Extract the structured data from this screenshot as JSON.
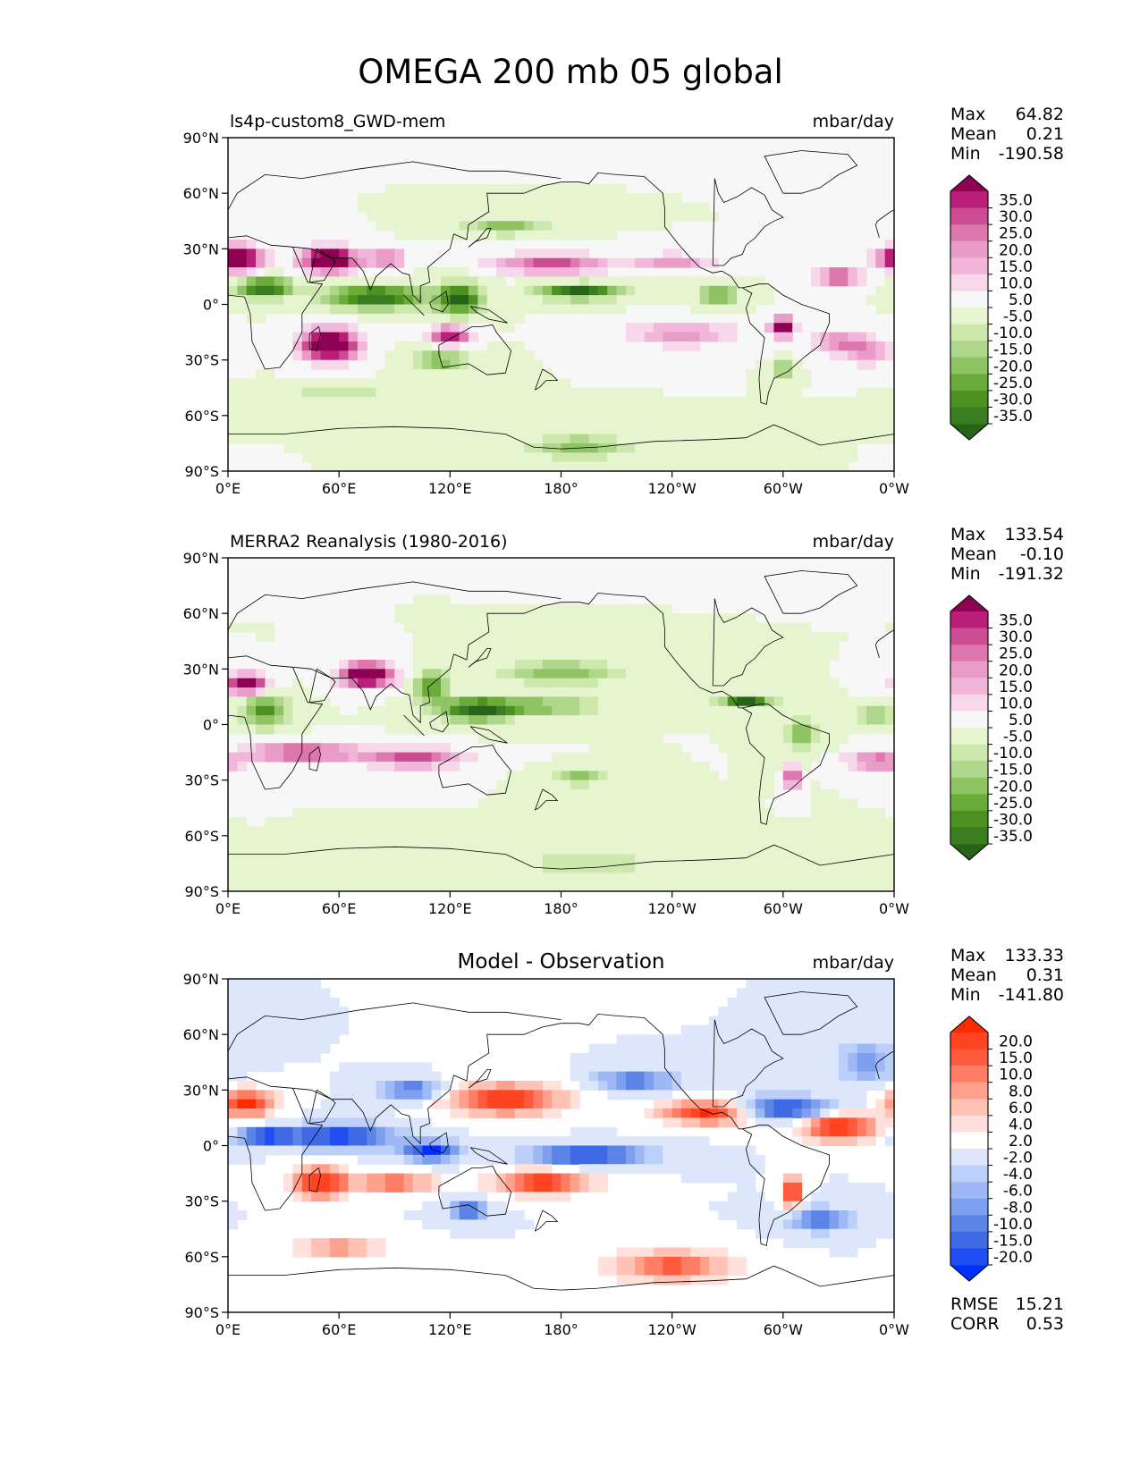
{
  "figure_title": "OMEGA 200 mb 05 global",
  "colors": {
    "pink_green": [
      "#276419",
      "#3a7d21",
      "#4d9221",
      "#6aab39",
      "#8fc363",
      "#afd78b",
      "#cce8ad",
      "#e6f5d0",
      "#f7f7f7",
      "#f6d8ea",
      "#f1b6da",
      "#ea9cc9",
      "#de77ae",
      "#cc4c94",
      "#b91f7a",
      "#8e0152"
    ],
    "red_blue": [
      "#0030ff",
      "#1f4ef2",
      "#3f6ae6",
      "#5c84e6",
      "#7c9ff0",
      "#9db8f4",
      "#bccff8",
      "#dde6fb",
      "#ffffff",
      "#ffe0da",
      "#ffc2b4",
      "#ffa08d",
      "#ff7d65",
      "#ff5a3e",
      "#ff4422",
      "#ff2a00"
    ]
  },
  "chart_data": [
    {
      "type": "heatmap",
      "title_left": "ls4p-custom8_GWD-mem",
      "title_right": "mbar/day",
      "xticks": [
        "0°E",
        "60°E",
        "120°E",
        "180°",
        "120°W",
        "60°W",
        "0°W"
      ],
      "yticks": [
        "90°N",
        "60°N",
        "30°N",
        "0°",
        "30°S",
        "60°S",
        "90°S"
      ],
      "xlim": [
        0,
        360
      ],
      "ylim": [
        -90,
        90
      ],
      "stats": [
        {
          "label": "Max",
          "value": "64.82"
        },
        {
          "label": "Mean",
          "value": "0.21"
        },
        {
          "label": "Min",
          "value": "-190.58"
        }
      ],
      "colorbar_levels": [
        "35.0",
        "30.0",
        "25.0",
        "20.0",
        "15.0",
        "10.0",
        "5.0",
        "-5.0",
        "-10.0",
        "-15.0",
        "-20.0",
        "-25.0",
        "-30.0",
        "-35.0"
      ],
      "colormap": "pink_green"
    },
    {
      "type": "heatmap",
      "title_left": "MERRA2 Reanalysis (1980-2016)",
      "title_right": "mbar/day",
      "xticks": [
        "0°E",
        "60°E",
        "120°E",
        "180°",
        "120°W",
        "60°W",
        "0°W"
      ],
      "yticks": [
        "90°N",
        "60°N",
        "30°N",
        "0°",
        "30°S",
        "60°S",
        "90°S"
      ],
      "xlim": [
        0,
        360
      ],
      "ylim": [
        -90,
        90
      ],
      "stats": [
        {
          "label": "Max",
          "value": "133.54"
        },
        {
          "label": "Mean",
          "value": "-0.10"
        },
        {
          "label": "Min",
          "value": "-191.32"
        }
      ],
      "colorbar_levels": [
        "35.0",
        "30.0",
        "25.0",
        "20.0",
        "15.0",
        "10.0",
        "5.0",
        "-5.0",
        "-10.0",
        "-15.0",
        "-20.0",
        "-25.0",
        "-30.0",
        "-35.0"
      ],
      "colormap": "pink_green"
    },
    {
      "type": "heatmap",
      "title_center": "Model - Observation",
      "title_right": "mbar/day",
      "xticks": [
        "0°E",
        "60°E",
        "120°E",
        "180°",
        "120°W",
        "60°W",
        "0°W"
      ],
      "yticks": [
        "90°N",
        "60°N",
        "30°N",
        "0°",
        "30°S",
        "60°S",
        "90°S"
      ],
      "xlim": [
        0,
        360
      ],
      "ylim": [
        -90,
        90
      ],
      "stats": [
        {
          "label": "Max",
          "value": "133.33"
        },
        {
          "label": "Mean",
          "value": "0.31"
        },
        {
          "label": "Min",
          "value": "-141.80"
        }
      ],
      "colorbar_levels": [
        "20.0",
        "15.0",
        "10.0",
        "8.0",
        "6.0",
        "4.0",
        "2.0",
        "-2.0",
        "-4.0",
        "-6.0",
        "-8.0",
        "-10.0",
        "-15.0",
        "-20.0"
      ],
      "colormap": "red_blue",
      "metrics": [
        {
          "label": "RMSE",
          "value": "15.21"
        },
        {
          "label": "CORR",
          "value": "0.53"
        }
      ]
    }
  ]
}
